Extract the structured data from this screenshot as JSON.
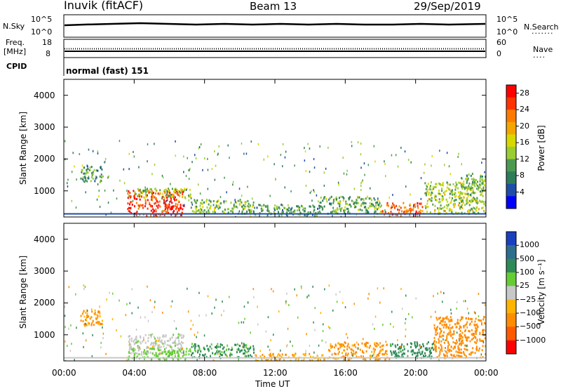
{
  "header": {
    "site": "Inuvik (fitACF)",
    "beam": "Beam 13",
    "date": "29/Sep/2019"
  },
  "aux_panels": {
    "nsky_label": "N.Sky",
    "nsky_ticks": [
      "10^5",
      "10^0"
    ],
    "nsearch_label": "N.Search",
    "nsearch_ticks": [
      "10^5",
      "10^0"
    ],
    "freq_label_line1": "Freq.",
    "freq_label_line2": "[MHz]",
    "freq_ticks": [
      "18",
      "8"
    ],
    "nave_label": "Nave",
    "nave_ticks": [
      "60",
      "0"
    ],
    "cpid_label": "CPID",
    "cpid_text": "normal (fast) 151"
  },
  "colors": {
    "power_scale": [
      "#0000ff",
      "#1f4ea8",
      "#2e7d5a",
      "#4c9a52",
      "#9acd32",
      "#d8d800",
      "#f5a500",
      "#ff7a00",
      "#ff3300",
      "#ff0000"
    ],
    "velocity_scale": [
      "#ff0000",
      "#ff5a00",
      "#ff8c00",
      "#ffb400",
      "#c8c8c8",
      "#66cc33",
      "#2e8b57",
      "#2f6d8f",
      "#1a40c0"
    ]
  },
  "chart_data": [
    {
      "type": "heatmap",
      "name": "power",
      "ylabel": "Slant Range [km]",
      "xlabel": "",
      "x_ticks": [
        "00:00",
        "04:00",
        "08:00",
        "12:00",
        "16:00",
        "20:00",
        "00:00"
      ],
      "y_ticks": [
        1000,
        2000,
        3000,
        4000
      ],
      "xlim": [
        0,
        24
      ],
      "ylim": [
        180,
        4500
      ],
      "colorbar": {
        "label": "Power [dB]",
        "ticks": [
          "4",
          "8",
          "12",
          "16",
          "20",
          "24",
          "28"
        ],
        "range": [
          0,
          30
        ]
      },
      "regions": [
        {
          "x": [
            0.9,
            2.2
          ],
          "y": [
            1300,
            1800
          ],
          "v": 10
        },
        {
          "x": [
            3.6,
            6.8
          ],
          "y": [
            250,
            1050
          ],
          "v": 26
        },
        {
          "x": [
            4.0,
            7.2
          ],
          "y": [
            800,
            1100
          ],
          "v": 14
        },
        {
          "x": [
            7.2,
            10.8
          ],
          "y": [
            300,
            750
          ],
          "v": 12
        },
        {
          "x": [
            10.8,
            14.5
          ],
          "y": [
            250,
            600
          ],
          "v": 10
        },
        {
          "x": [
            14.5,
            18.0
          ],
          "y": [
            300,
            850
          ],
          "v": 11
        },
        {
          "x": [
            18.0,
            20.5
          ],
          "y": [
            250,
            650
          ],
          "v": 24
        },
        {
          "x": [
            20.5,
            24.0
          ],
          "y": [
            300,
            1300
          ],
          "v": 14
        },
        {
          "x": [
            22.5,
            24.0
          ],
          "y": [
            900,
            1600
          ],
          "v": 12
        }
      ]
    },
    {
      "type": "heatmap",
      "name": "velocity",
      "ylabel": "Slant Range [km]",
      "xlabel": "Time UT",
      "x_ticks": [
        "00:00",
        "04:00",
        "08:00",
        "12:00",
        "16:00",
        "20:00",
        "00:00"
      ],
      "y_ticks": [
        1000,
        2000,
        3000,
        4000
      ],
      "xlim": [
        0,
        24
      ],
      "ylim": [
        180,
        4500
      ],
      "colorbar": {
        "label": "Velocity [m s⁻¹]",
        "ticks": [
          "1000",
          "500",
          "100",
          "25",
          "−25",
          "−100",
          "−500",
          "−1000"
        ]
      },
      "regions": [
        {
          "x": [
            0.9,
            2.2
          ],
          "y": [
            1300,
            1800
          ],
          "v": -120
        },
        {
          "x": [
            3.6,
            6.8
          ],
          "y": [
            400,
            1050
          ],
          "v": 10
        },
        {
          "x": [
            3.6,
            7.2
          ],
          "y": [
            250,
            600
          ],
          "v": 60
        },
        {
          "x": [
            7.2,
            10.8
          ],
          "y": [
            300,
            750
          ],
          "v": 150
        },
        {
          "x": [
            10.8,
            15.0
          ],
          "y": [
            200,
            450
          ],
          "v": -80
        },
        {
          "x": [
            15.0,
            18.5
          ],
          "y": [
            250,
            800
          ],
          "v": -150
        },
        {
          "x": [
            18.5,
            21.0
          ],
          "y": [
            300,
            800
          ],
          "v": 300
        },
        {
          "x": [
            21.0,
            24.0
          ],
          "y": [
            300,
            1600
          ],
          "v": -300
        }
      ]
    }
  ]
}
